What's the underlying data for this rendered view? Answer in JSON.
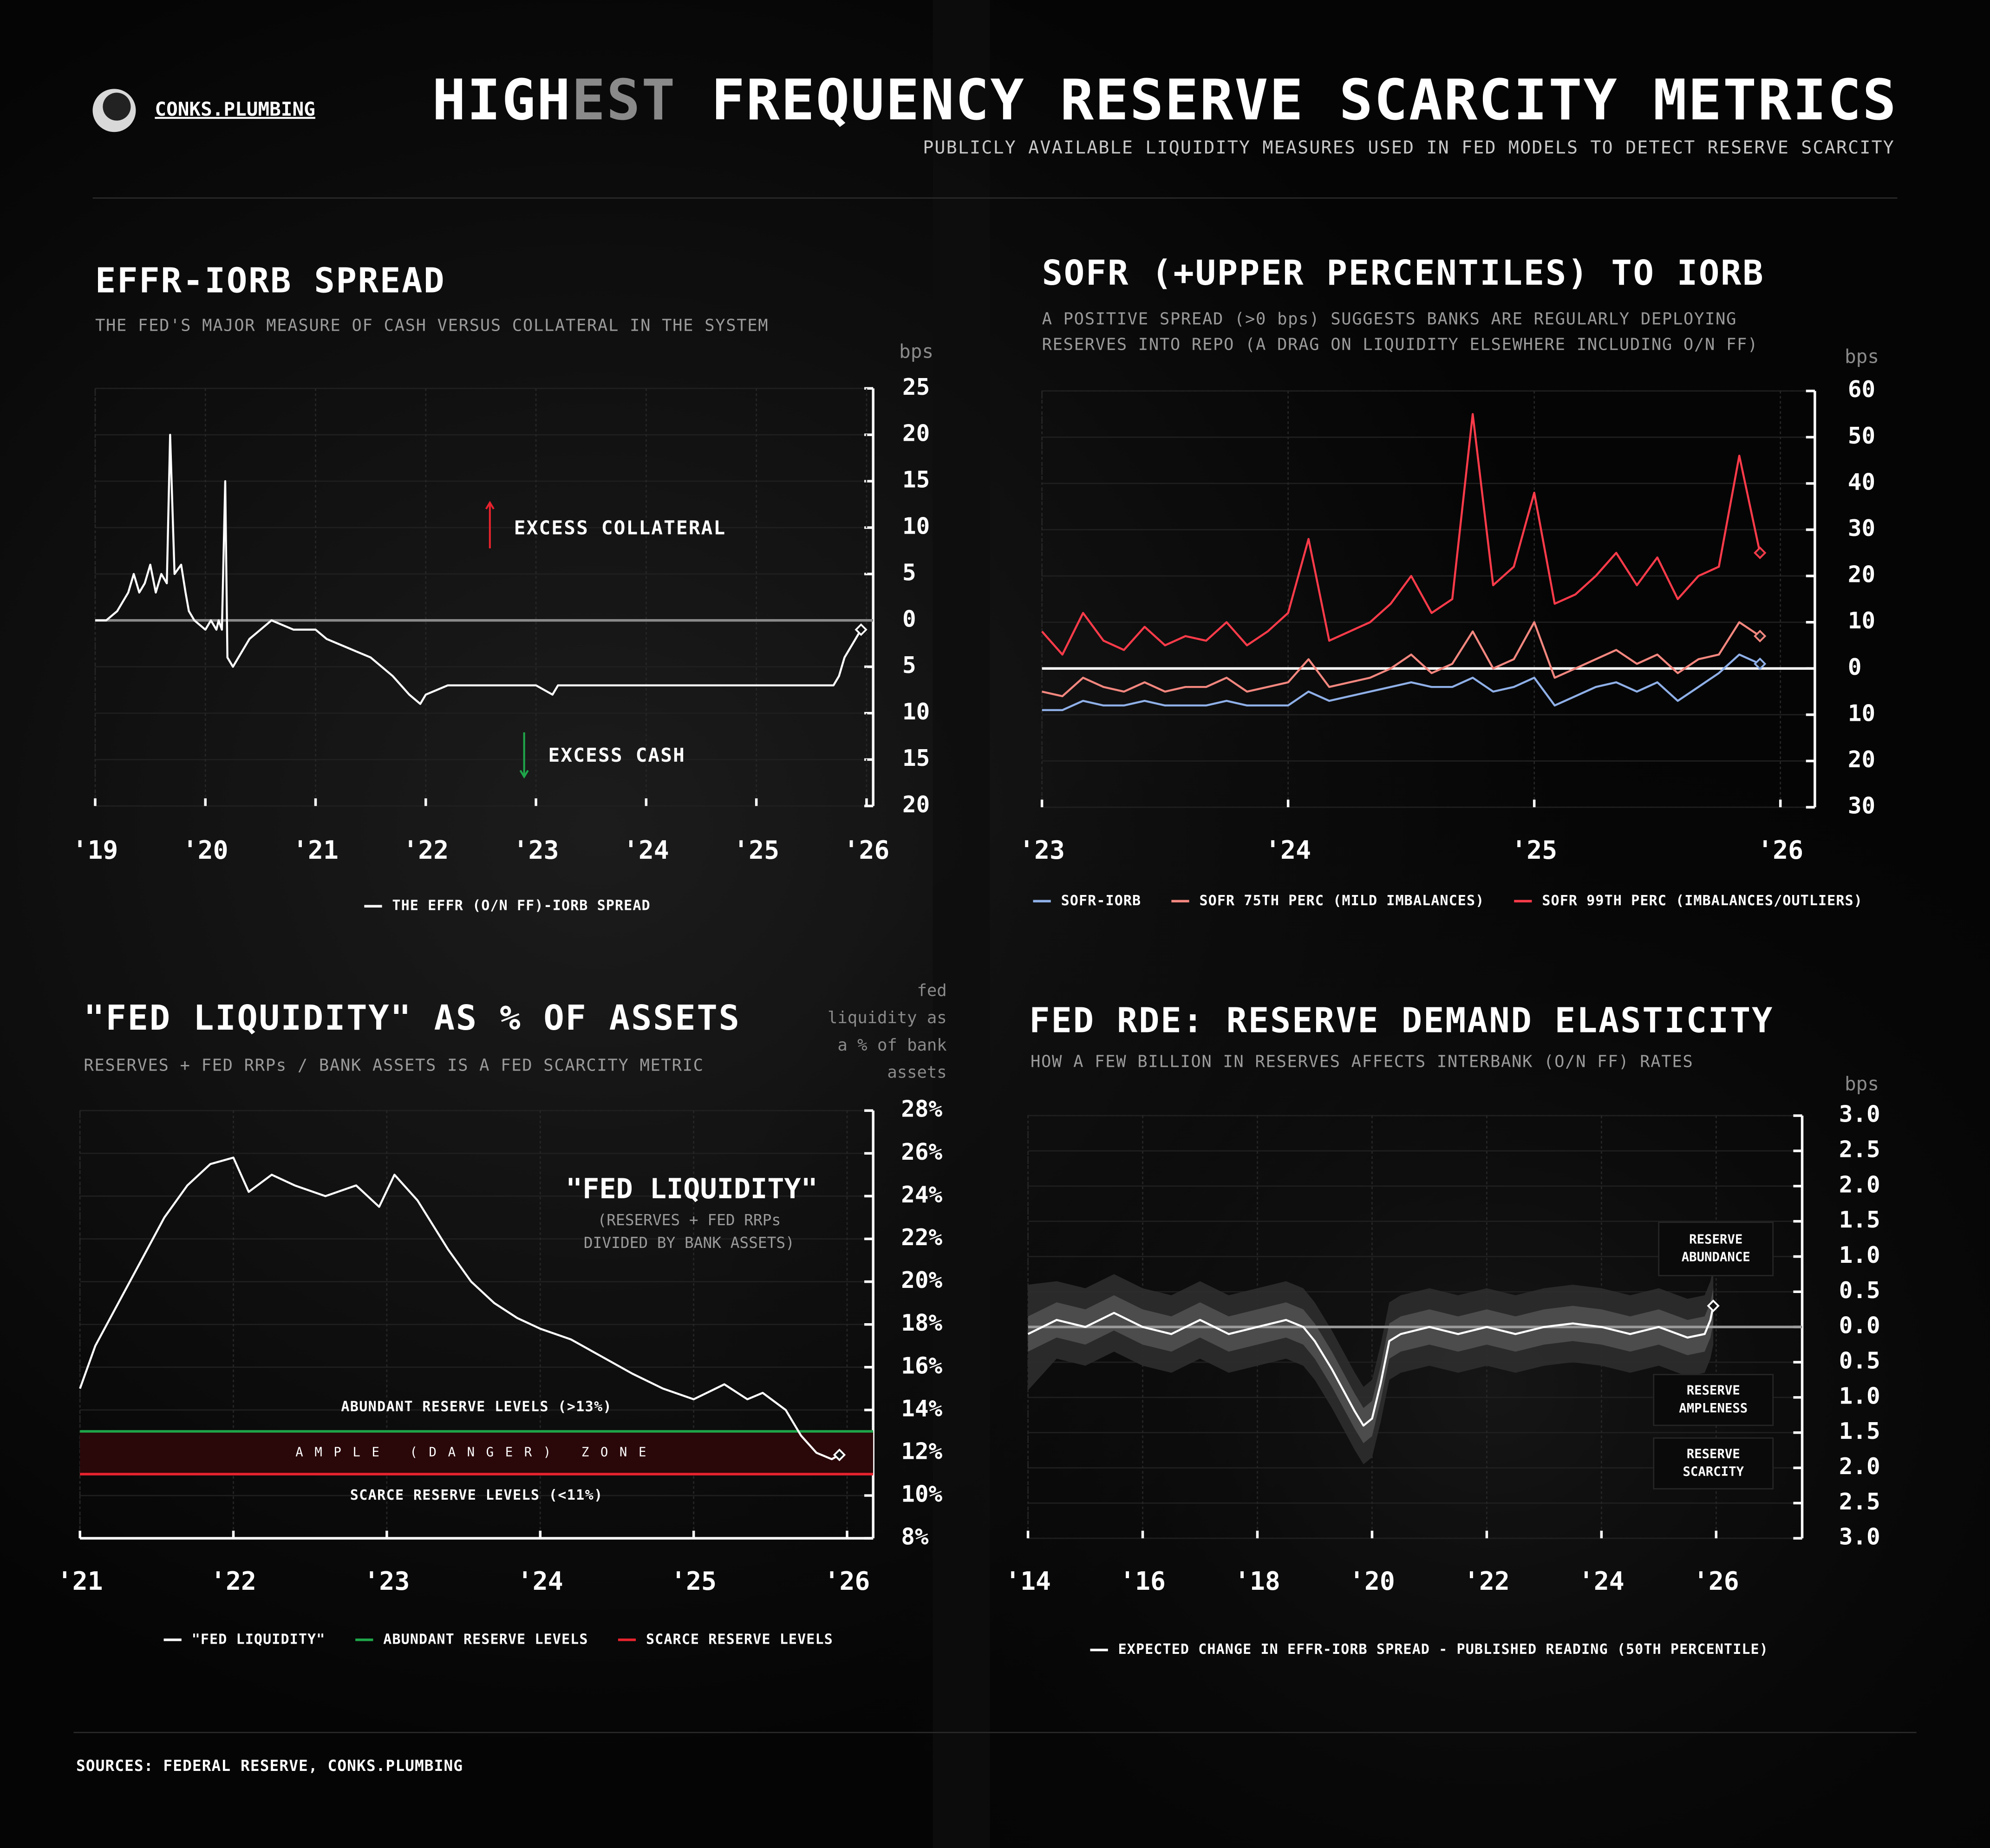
{
  "header": {
    "brand": "CONKS.PLUMBING",
    "title_parts": [
      "HIGH",
      "EST",
      " FREQUENCY RESERVE SCARCITY METRICS"
    ],
    "title_colors": [
      "#ffffff",
      "#8a8a8a",
      "#ffffff"
    ],
    "subtitle": "PUBLICLY AVAILABLE LIQUIDITY MEASURES USED IN FED MODELS TO DETECT RESERVE SCARCITY"
  },
  "chart_data": [
    {
      "type": "line",
      "title": "EFFR-IORB SPREAD",
      "subtitle": [
        "THE FED'S MAJOR MEASURE OF CASH VERSUS COLLATERAL IN THE SYSTEM"
      ],
      "y_unit": "bps",
      "x": [
        2019.0,
        2019.1,
        2019.2,
        2019.3,
        2019.35,
        2019.4,
        2019.45,
        2019.5,
        2019.55,
        2019.6,
        2019.65,
        2019.68,
        2019.72,
        2019.78,
        2019.82,
        2019.85,
        2019.9,
        2020.0,
        2020.05,
        2020.1,
        2020.12,
        2020.15,
        2020.18,
        2020.2,
        2020.25,
        2020.3,
        2020.4,
        2020.5,
        2020.6,
        2020.8,
        2021.0,
        2021.1,
        2021.3,
        2021.5,
        2021.7,
        2021.85,
        2021.95,
        2022.0,
        2022.2,
        2023.0,
        2023.15,
        2023.2,
        2024.0,
        2025.0,
        2025.7,
        2025.75,
        2025.8,
        2025.85,
        2025.9,
        2025.95
      ],
      "series": [
        {
          "name": "THE EFFR (O/N FF)-IORB SPREAD",
          "color": "#ffffff",
          "values": [
            0,
            0,
            1,
            3,
            5,
            3,
            4,
            6,
            3,
            5,
            4,
            20,
            5,
            6,
            3,
            1,
            0,
            -1,
            0,
            -1,
            0,
            -1,
            15,
            -4,
            -5,
            -4,
            -2,
            -1,
            0,
            -1,
            -1,
            -2,
            -3,
            -4,
            -6,
            -8,
            -9,
            -8,
            -7,
            -7,
            -8,
            -7,
            -7,
            -7,
            -7,
            -6,
            -4,
            -3,
            -2,
            -1
          ]
        }
      ],
      "xlim": [
        2019,
        2026.06
      ],
      "xticks": [
        {
          "value": 2019,
          "label": "'19"
        },
        {
          "value": 2020,
          "label": "'20"
        },
        {
          "value": 2021,
          "label": "'21"
        },
        {
          "value": 2022,
          "label": "'22"
        },
        {
          "value": 2023,
          "label": "'23"
        },
        {
          "value": 2024,
          "label": "'24"
        },
        {
          "value": 2025,
          "label": "'25"
        },
        {
          "value": 2026,
          "label": "'26"
        }
      ],
      "ylim": [
        -20,
        25
      ],
      "yticks": [
        25,
        20,
        15,
        10,
        5,
        0,
        {
          "value": -5,
          "label": "5"
        },
        {
          "value": -10,
          "label": "10"
        },
        {
          "value": -15,
          "label": "15"
        },
        {
          "value": -20,
          "label": "20"
        }
      ],
      "negative_color": "#e8232e",
      "zero_line_color": "#8a8a8a",
      "grid": true,
      "annotations": [
        {
          "text": "EXCESS COLLATERAL",
          "color": "#e8232e"
        },
        {
          "text": "EXCESS CASH",
          "color": "#1fa64a"
        }
      ]
    },
    {
      "type": "line",
      "title": "SOFR (+UPPER PERCENTILES) TO IORB",
      "subtitle": [
        "A POSITIVE SPREAD (>0 bps) SUGGESTS BANKS ARE REGULARLY DEPLOYING",
        "RESERVES INTO REPO (A DRAG ON LIQUIDITY ELSEWHERE INCLUDING O/N FF)"
      ],
      "y_unit": "bps",
      "x": [
        2023.0,
        2023.083,
        2023.167,
        2023.25,
        2023.333,
        2023.417,
        2023.5,
        2023.583,
        2023.667,
        2023.75,
        2023.833,
        2023.917,
        2024.0,
        2024.083,
        2024.167,
        2024.25,
        2024.333,
        2024.417,
        2024.5,
        2024.583,
        2024.667,
        2024.75,
        2024.833,
        2024.917,
        2025.0,
        2025.083,
        2025.167,
        2025.25,
        2025.333,
        2025.417,
        2025.5,
        2025.583,
        2025.667,
        2025.75,
        2025.833,
        2025.917
      ],
      "series": [
        {
          "name": "SOFR-IORB",
          "color": "#8fb0e8",
          "values": [
            -9,
            -9,
            -7,
            -8,
            -8,
            -7,
            -8,
            -8,
            -8,
            -7,
            -8,
            -8,
            -8,
            -5,
            -7,
            -6,
            -5,
            -4,
            -3,
            -4,
            -4,
            -2,
            -5,
            -4,
            -2,
            -8,
            -6,
            -4,
            -3,
            -5,
            -3,
            -7,
            -4,
            -1,
            3,
            1
          ]
        },
        {
          "name": "SOFR 75TH PERC (MILD IMBALANCES)",
          "color": "#f4877f",
          "values": [
            -5,
            -6,
            -2,
            -4,
            -5,
            -3,
            -5,
            -4,
            -4,
            -2,
            -5,
            -4,
            -3,
            2,
            -4,
            -3,
            -2,
            0,
            3,
            -1,
            1,
            8,
            0,
            2,
            10,
            -2,
            0,
            2,
            4,
            1,
            3,
            -1,
            2,
            3,
            10,
            7
          ]
        },
        {
          "name": "SOFR 99TH PERC (IMBALANCES/OUTLIERS)",
          "color": "#ff3b4a",
          "values": [
            8,
            3,
            12,
            6,
            4,
            9,
            5,
            7,
            6,
            10,
            5,
            8,
            12,
            28,
            6,
            8,
            10,
            14,
            20,
            12,
            15,
            55,
            18,
            22,
            38,
            14,
            16,
            20,
            25,
            18,
            24,
            15,
            20,
            22,
            46,
            25
          ]
        }
      ],
      "xlim": [
        2023,
        2026.14
      ],
      "xticks": [
        {
          "value": 2023,
          "label": "'23"
        },
        {
          "value": 2024,
          "label": "'24"
        },
        {
          "value": 2025,
          "label": "'25"
        },
        {
          "value": 2026,
          "label": "'26"
        }
      ],
      "ylim": [
        -30,
        60
      ],
      "yticks": [
        60,
        50,
        40,
        30,
        20,
        10,
        0,
        {
          "value": -10,
          "label": "10"
        },
        {
          "value": -20,
          "label": "20"
        },
        {
          "value": -30,
          "label": "30"
        }
      ],
      "negative_color": "#e8232e",
      "zero_line_color": "#ffffff",
      "grid": true
    },
    {
      "type": "line",
      "title": "\"FED LIQUIDITY\" AS % OF ASSETS",
      "subtitle": [
        "RESERVES + FED RRPs / BANK ASSETS IS A FED SCARCITY METRIC"
      ],
      "y_title": [
        "fed",
        "liquidity as",
        "a % of bank",
        "assets"
      ],
      "x": [
        2021.0,
        2021.1,
        2021.25,
        2021.4,
        2021.55,
        2021.7,
        2021.85,
        2022.0,
        2022.1,
        2022.25,
        2022.4,
        2022.6,
        2022.8,
        2022.95,
        2023.05,
        2023.2,
        2023.4,
        2023.55,
        2023.7,
        2023.85,
        2024.0,
        2024.2,
        2024.4,
        2024.6,
        2024.8,
        2025.0,
        2025.2,
        2025.35,
        2025.45,
        2025.6,
        2025.7,
        2025.8,
        2025.9,
        2025.95
      ],
      "series": [
        {
          "name": "\"FED LIQUIDITY\"",
          "color": "#ffffff",
          "values": [
            15,
            17,
            19,
            21,
            23,
            24.5,
            25.5,
            25.8,
            24.2,
            25,
            24.5,
            24,
            24.5,
            23.5,
            25,
            23.8,
            21.5,
            20,
            19,
            18.3,
            17.8,
            17.3,
            16.5,
            15.7,
            15,
            14.5,
            15.2,
            14.5,
            14.8,
            14,
            12.8,
            12,
            11.7,
            11.9
          ]
        }
      ],
      "reference_lines": [
        {
          "name": "ABUNDANT RESERVE LEVELS",
          "label": "ABUNDANT RESERVE LEVELS (>13%)",
          "value": 13,
          "color": "#1fa64a"
        },
        {
          "name": "SCARCE RESERVE LEVELS",
          "label": "SCARCE RESERVE LEVELS (<11%)",
          "value": 11,
          "color": "#e8232e"
        }
      ],
      "zone": {
        "label": "AMPLE (DANGER) ZONE",
        "color": "#2a0709",
        "text_color": "#b3262e"
      },
      "annotation": {
        "title": "\"FED LIQUIDITY\"",
        "lines": [
          "(RESERVES + FED RRPs",
          "DIVIDED BY BANK ASSETS)"
        ]
      },
      "xlim": [
        2021,
        2026.17
      ],
      "xticks": [
        {
          "value": 2021,
          "label": "'21"
        },
        {
          "value": 2022,
          "label": "'22"
        },
        {
          "value": 2023,
          "label": "'23"
        },
        {
          "value": 2024,
          "label": "'24"
        },
        {
          "value": 2025,
          "label": "'25"
        },
        {
          "value": 2026,
          "label": "'26"
        }
      ],
      "ylim": [
        8,
        28
      ],
      "yticks": [
        {
          "value": 28,
          "label": "28%"
        },
        {
          "value": 26,
          "label": "26%"
        },
        {
          "value": 24,
          "label": "24%"
        },
        {
          "value": 22,
          "label": "22%"
        },
        {
          "value": 20,
          "label": "20%"
        },
        {
          "value": 18,
          "label": "18%"
        },
        {
          "value": 16,
          "label": "16%"
        },
        {
          "value": 14,
          "label": "14%"
        },
        {
          "value": 12,
          "label": "12%"
        },
        {
          "value": 10,
          "label": "10%"
        },
        {
          "value": 8,
          "label": "8%"
        }
      ],
      "negative_color": "#e8232e",
      "grid": true
    },
    {
      "type": "line",
      "title": "FED RDE: RESERVE DEMAND ELASTICITY",
      "subtitle": [
        "HOW A FEW BILLION IN RESERVES AFFECTS INTERBANK (O/N FF) RATES"
      ],
      "y_unit": "bps",
      "x": [
        2014.0,
        2014.5,
        2015.0,
        2015.5,
        2016.0,
        2016.5,
        2017.0,
        2017.5,
        2018.0,
        2018.5,
        2018.8,
        2019.0,
        2019.3,
        2019.5,
        2019.7,
        2019.85,
        2020.0,
        2020.15,
        2020.3,
        2020.5,
        2021.0,
        2021.5,
        2022.0,
        2022.5,
        2023.0,
        2023.5,
        2024.0,
        2024.5,
        2025.0,
        2025.5,
        2025.8,
        2025.9,
        2025.95
      ],
      "bands": [
        {
          "color": "#2e2e2e",
          "lower": [
            -0.9,
            -0.45,
            -0.55,
            -0.35,
            -0.55,
            -0.65,
            -0.45,
            -0.65,
            -0.55,
            -0.45,
            -0.55,
            -0.75,
            -1.15,
            -1.45,
            -1.75,
            -1.95,
            -1.85,
            -1.35,
            -0.75,
            -0.65,
            -0.55,
            -0.65,
            -0.55,
            -0.65,
            -0.55,
            -0.5,
            -0.55,
            -0.65,
            -0.55,
            -0.7,
            -0.65,
            -0.45,
            -0.25
          ],
          "upper": [
            0.6,
            0.65,
            0.55,
            0.75,
            0.55,
            0.45,
            0.65,
            0.45,
            0.55,
            0.65,
            0.55,
            0.35,
            -0.05,
            -0.35,
            -0.65,
            -0.85,
            -0.75,
            -0.25,
            0.35,
            0.45,
            0.55,
            0.45,
            0.55,
            0.45,
            0.55,
            0.6,
            0.55,
            0.45,
            0.55,
            0.4,
            0.45,
            0.65,
            0.85
          ]
        },
        {
          "color": "#505050",
          "lower": [
            -0.35,
            -0.15,
            -0.25,
            -0.05,
            -0.25,
            -0.35,
            -0.15,
            -0.35,
            -0.25,
            -0.15,
            -0.25,
            -0.45,
            -0.85,
            -1.15,
            -1.45,
            -1.65,
            -1.55,
            -1.05,
            -0.45,
            -0.35,
            -0.25,
            -0.35,
            -0.25,
            -0.35,
            -0.25,
            -0.2,
            -0.25,
            -0.35,
            -0.25,
            -0.4,
            -0.35,
            -0.15,
            0.05
          ],
          "upper": [
            0.15,
            0.35,
            0.25,
            0.45,
            0.25,
            0.15,
            0.35,
            0.15,
            0.25,
            0.35,
            0.25,
            0.05,
            -0.35,
            -0.65,
            -0.95,
            -1.15,
            -1.05,
            -0.55,
            0.05,
            0.15,
            0.25,
            0.15,
            0.25,
            0.15,
            0.25,
            0.3,
            0.25,
            0.15,
            0.25,
            0.1,
            0.15,
            0.35,
            0.55
          ]
        }
      ],
      "series": [
        {
          "name": "EXPECTED CHANGE IN EFFR-IORB SPREAD - PUBLISHED READING (50TH PERCENTILE)",
          "color": "#ffffff",
          "values": [
            -0.1,
            0.1,
            0.0,
            0.2,
            0.0,
            -0.1,
            0.1,
            -0.1,
            0.0,
            0.1,
            0.0,
            -0.2,
            -0.6,
            -0.9,
            -1.2,
            -1.4,
            -1.3,
            -0.8,
            -0.2,
            -0.1,
            0.0,
            -0.1,
            0.0,
            -0.1,
            0.0,
            0.05,
            0.0,
            -0.1,
            0.0,
            -0.15,
            -0.1,
            0.1,
            0.3
          ]
        }
      ],
      "boxes": [
        {
          "lines": [
            "RESERVE",
            "ABUNDANCE"
          ],
          "color": "#1fa64a"
        },
        {
          "lines": [
            "RESERVE",
            "AMPLENESS"
          ],
          "color": "#ff5a60"
        },
        {
          "lines": [
            "RESERVE",
            "SCARCITY"
          ],
          "color": "#ff5a60"
        }
      ],
      "xlim": [
        2014,
        2027.5
      ],
      "xticks": [
        {
          "value": 2014,
          "label": "'14"
        },
        {
          "value": 2016,
          "label": "'16"
        },
        {
          "value": 2018,
          "label": "'18"
        },
        {
          "value": 2020,
          "label": "'20"
        },
        {
          "value": 2022,
          "label": "'22"
        },
        {
          "value": 2024,
          "label": "'24"
        },
        {
          "value": 2026,
          "label": "'26"
        }
      ],
      "ylim": [
        -3,
        3
      ],
      "yticks": [
        {
          "value": 3,
          "label": "3.0"
        },
        {
          "value": 2.5,
          "label": "2.5"
        },
        {
          "value": 2,
          "label": "2.0"
        },
        {
          "value": 1.5,
          "label": "1.5"
        },
        {
          "value": 1,
          "label": "1.0"
        },
        {
          "value": 0.5,
          "label": "0.5"
        },
        {
          "value": 0,
          "label": "0.0"
        },
        {
          "value": -0.5,
          "label": "0.5"
        },
        {
          "value": -1,
          "label": "1.0"
        },
        {
          "value": -1.5,
          "label": "1.5"
        },
        {
          "value": -2,
          "label": "2.0"
        },
        {
          "value": -2.5,
          "label": "2.5"
        },
        {
          "value": -3,
          "label": "3.0"
        }
      ],
      "negative_color": "#e8232e",
      "zero_line_color": "#9a9a9a",
      "grid": true
    }
  ],
  "footer": {
    "sources": "SOURCES: FEDERAL RESERVE, CONKS.PLUMBING"
  }
}
